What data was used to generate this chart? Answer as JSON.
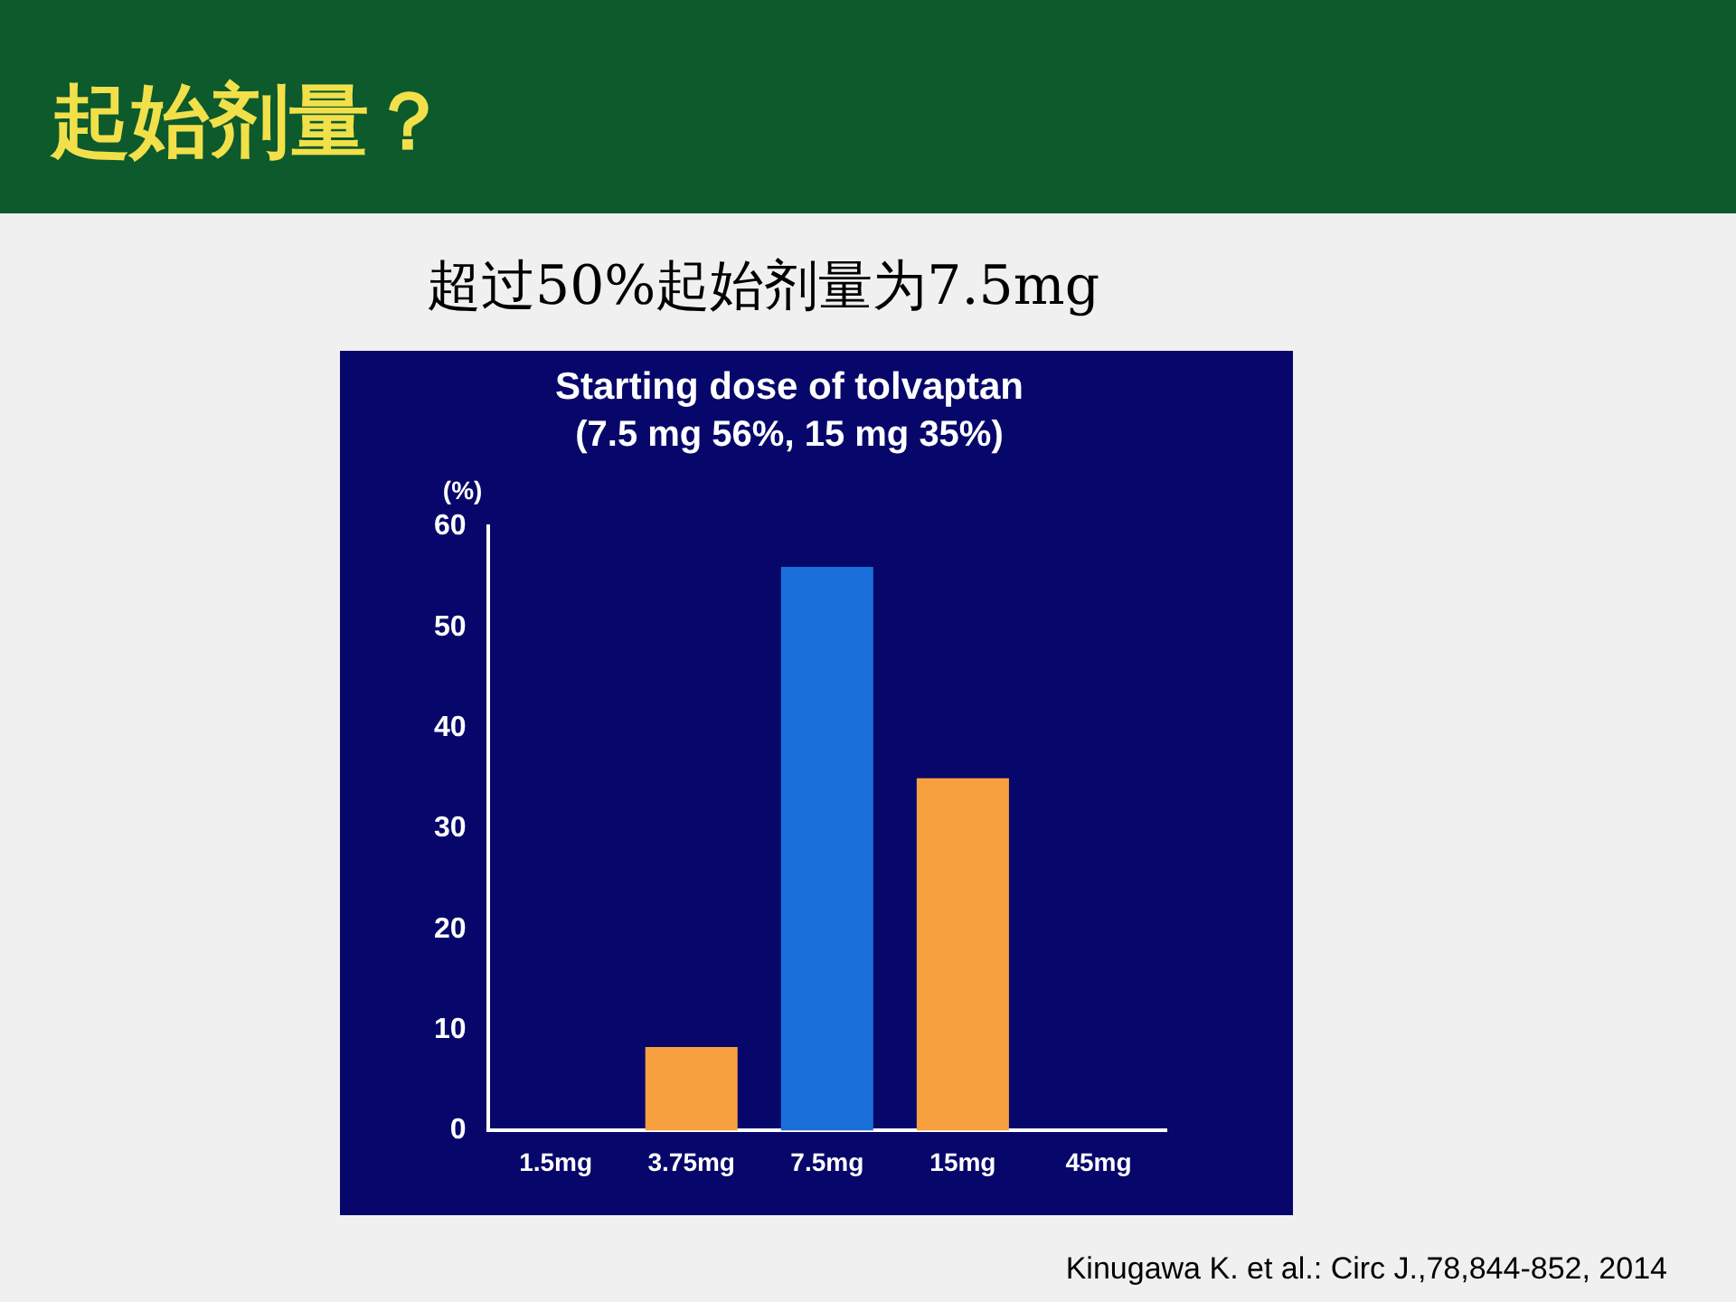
{
  "chart_data": {
    "type": "bar",
    "title": "Starting dose of tolvaptan",
    "subtitle": "(7.5 mg 56%, 15 mg 35%)",
    "ylabel": "(%)",
    "categories": [
      "1.5mg",
      "3.75mg",
      "7.5mg",
      "15mg",
      "45mg"
    ],
    "values": [
      0,
      8.3,
      56,
      35,
      0
    ],
    "colors": [
      "#f7a040",
      "#f7a040",
      "#1b6fd8",
      "#f7a040",
      "#f7a040"
    ],
    "ylim": [
      0,
      60
    ],
    "yticks": [
      0,
      10,
      20,
      30,
      40,
      50,
      60
    ],
    "grid": false,
    "annotations": [
      "起始剂量？",
      "超过50%起始剂量为7.5mg",
      "Kinugawa K. et al.: Circ J.,78,844-852, 2014"
    ]
  }
}
